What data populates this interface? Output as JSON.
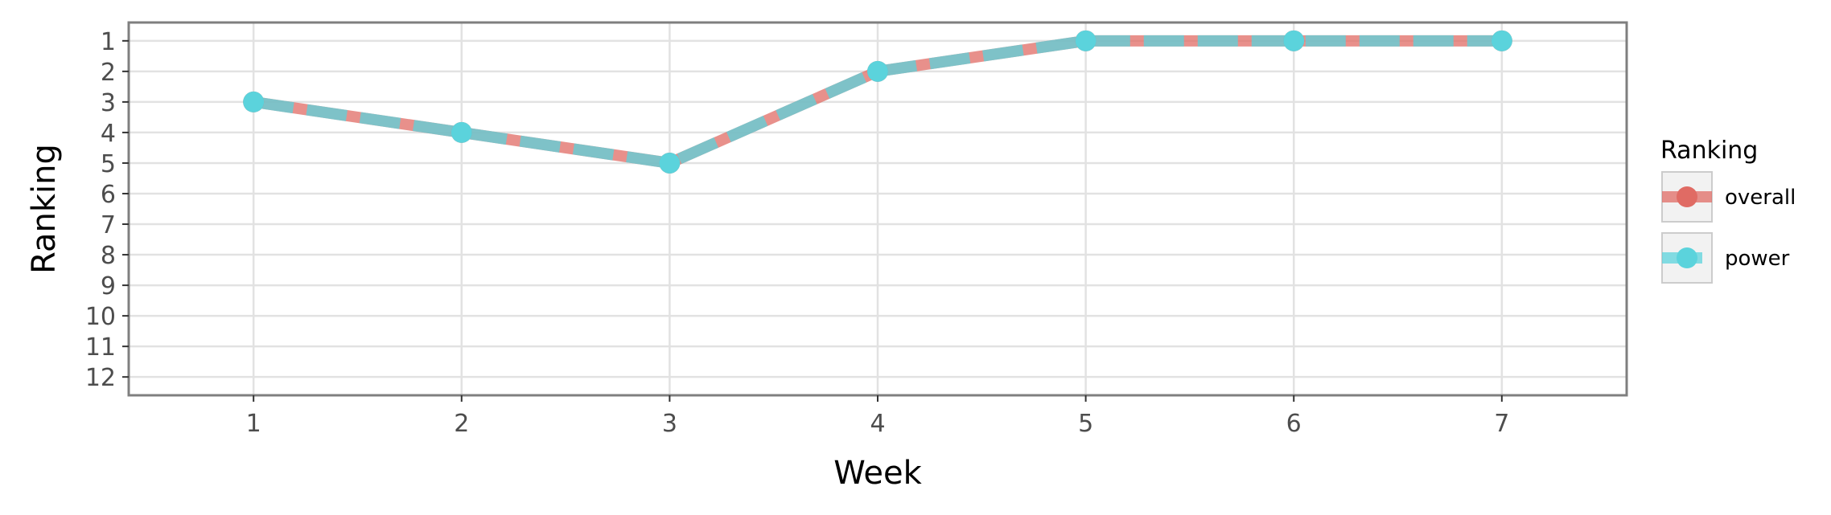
{
  "chart_data": {
    "type": "line",
    "xlabel": "Week",
    "ylabel": "Ranking",
    "x": [
      1,
      2,
      3,
      4,
      5,
      6,
      7
    ],
    "xlim": [
      0.4,
      7.6
    ],
    "ylim": [
      12.6,
      0.4
    ],
    "y_reversed": true,
    "x_ticks": [
      1,
      2,
      3,
      4,
      5,
      6,
      7
    ],
    "y_ticks": [
      1,
      2,
      3,
      4,
      5,
      6,
      7,
      8,
      9,
      10,
      11,
      12
    ],
    "grid": true,
    "legend": {
      "title": "Ranking",
      "position": "right"
    },
    "series": [
      {
        "name": "overall",
        "color": "#e06b64",
        "line_style": "solid",
        "values": [
          3,
          4,
          5,
          2,
          1,
          1,
          1
        ]
      },
      {
        "name": "power",
        "color": "#5bd3dc",
        "line_style": "dashed",
        "values": [
          3,
          4,
          5,
          2,
          1,
          1,
          1
        ]
      }
    ]
  }
}
